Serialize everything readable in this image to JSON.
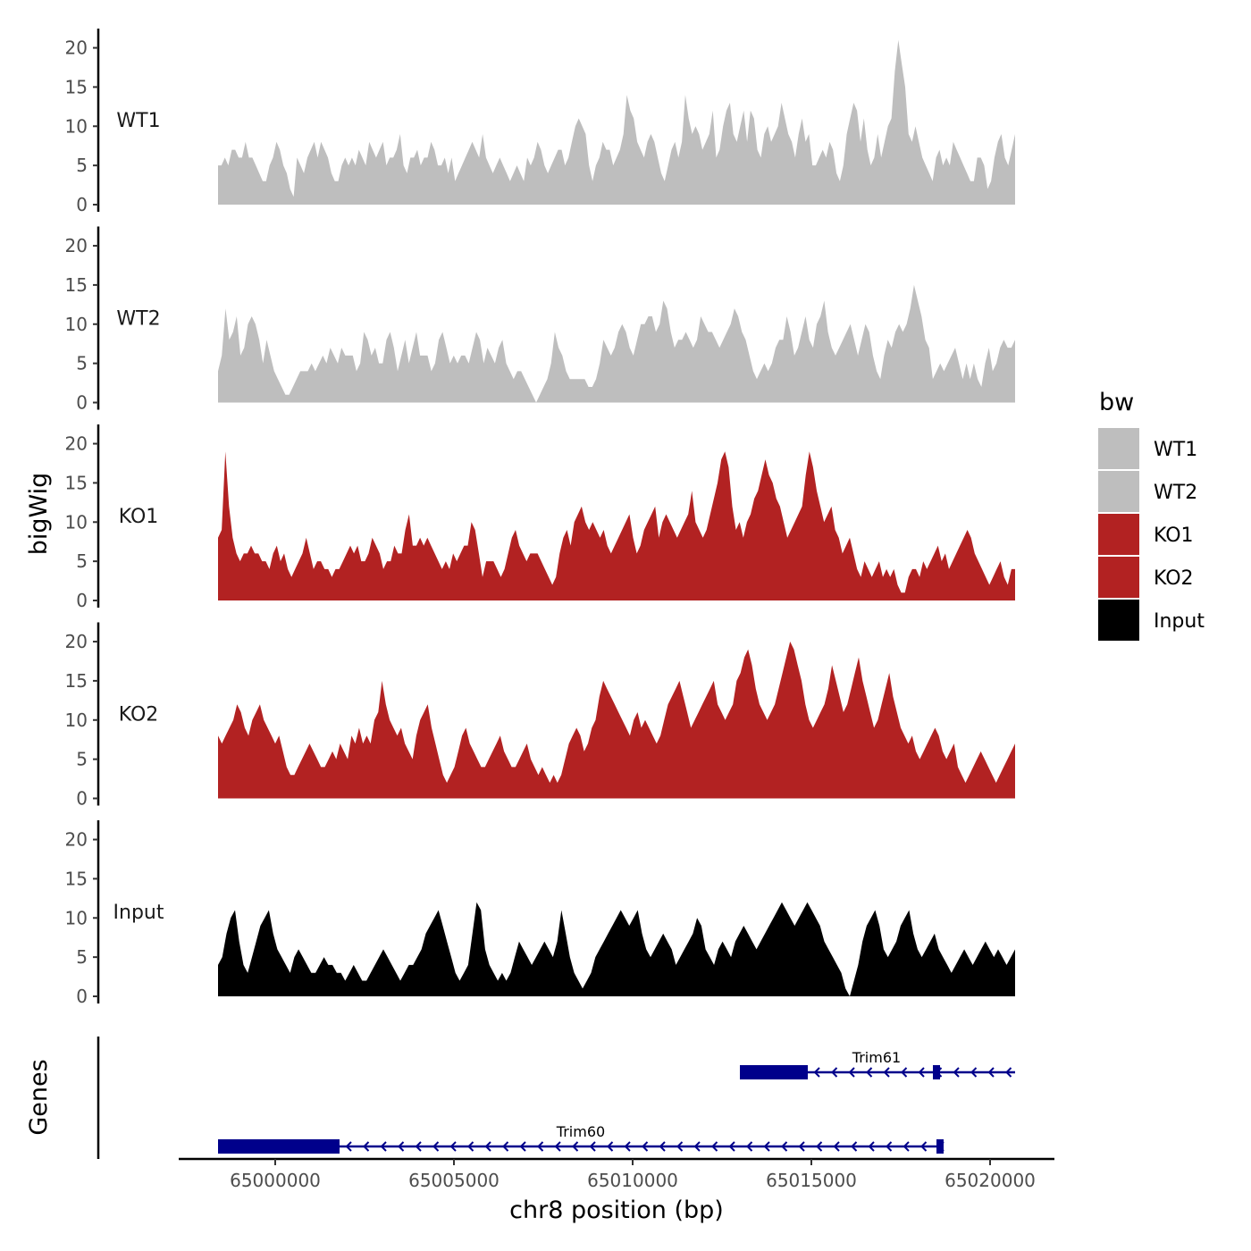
{
  "chart_data": {
    "type": "area",
    "chromosome": "chr8",
    "xlabel": "chr8 position (bp)",
    "ylabel": "bigWig",
    "genes_label": "Genes",
    "xlim": [
      64997300,
      65021800
    ],
    "ylim": [
      0,
      22
    ],
    "x_ticks": [
      65000000,
      65005000,
      65010000,
      65015000,
      65020000
    ],
    "x_tick_labels": [
      "65000000",
      "65005000",
      "65010000",
      "65015000",
      "65020000"
    ],
    "y_ticks": [
      0,
      5,
      10,
      15,
      20
    ],
    "y_tick_labels": [
      "0",
      "5",
      "10",
      "15",
      "20"
    ],
    "signal_range": [
      64998400,
      65020700
    ],
    "legend": {
      "title": "bw",
      "entries": [
        {
          "label": "WT1",
          "color": "#bebebe"
        },
        {
          "label": "WT2",
          "color": "#bebebe"
        },
        {
          "label": "KO1",
          "color": "#b22222"
        },
        {
          "label": "KO2",
          "color": "#b22222"
        },
        {
          "label": "Input",
          "color": "#000000"
        }
      ]
    },
    "series": [
      {
        "name": "WT1",
        "color": "#bebebe",
        "values": [
          5,
          5,
          6,
          5,
          7,
          7,
          6,
          6,
          8,
          6,
          6,
          5,
          4,
          3,
          3,
          5,
          6,
          8,
          7,
          5,
          4,
          2,
          1,
          6,
          5,
          4,
          6,
          7,
          8,
          6,
          8,
          7,
          6,
          4,
          3,
          3,
          5,
          6,
          5,
          6,
          5,
          7,
          6,
          5,
          8,
          7,
          6,
          7,
          8,
          5,
          6,
          6,
          7,
          9,
          5,
          4,
          6,
          6,
          7,
          5,
          6,
          6,
          8,
          7,
          5,
          5,
          6,
          4,
          6,
          3,
          4,
          5,
          6,
          7,
          8,
          7,
          6,
          9,
          6,
          5,
          4,
          5,
          6,
          5,
          4,
          3,
          4,
          5,
          4,
          3,
          6,
          5,
          6,
          8,
          7,
          5,
          4,
          5,
          6,
          7,
          7,
          5,
          6,
          8,
          10,
          11,
          10,
          9,
          5,
          3,
          5,
          6,
          8,
          7,
          7,
          5,
          6,
          7,
          9,
          14,
          12,
          11,
          8,
          7,
          6,
          8,
          9,
          8,
          6,
          4,
          3,
          5,
          7,
          8,
          6,
          8,
          14,
          11,
          9,
          10,
          9,
          7,
          8,
          9,
          12,
          6,
          7,
          10,
          12,
          13,
          9,
          8,
          10,
          12,
          8,
          12,
          11,
          7,
          6,
          9,
          10,
          8,
          9,
          10,
          13,
          11,
          9,
          8,
          6,
          9,
          11,
          8,
          9,
          5,
          5,
          6,
          7,
          6,
          8,
          7,
          4,
          3,
          5,
          9,
          11,
          13,
          12,
          8,
          11,
          7,
          5,
          6,
          9,
          6,
          8,
          10,
          11,
          17,
          21,
          18,
          15,
          9,
          8,
          10,
          8,
          6,
          5,
          4,
          3,
          6,
          7,
          5,
          6,
          5,
          8,
          7,
          6,
          5,
          4,
          3,
          3,
          6,
          6,
          5,
          2,
          3,
          6,
          8,
          9,
          6,
          5,
          7,
          9
        ]
      },
      {
        "name": "WT2",
        "color": "#bebebe",
        "values": [
          4,
          6,
          12,
          8,
          9,
          11,
          6,
          7,
          10,
          11,
          10,
          8,
          5,
          8,
          6,
          4,
          3,
          2,
          1,
          1,
          2,
          3,
          4,
          4,
          4,
          5,
          4,
          5,
          6,
          5,
          7,
          6,
          5,
          7,
          6,
          6,
          6,
          4,
          5,
          9,
          8,
          6,
          7,
          5,
          5,
          8,
          9,
          7,
          4,
          6,
          8,
          5,
          7,
          9,
          6,
          6,
          6,
          4,
          5,
          8,
          9,
          7,
          5,
          6,
          5,
          6,
          6,
          5,
          7,
          9,
          8,
          5,
          7,
          6,
          5,
          7,
          8,
          5,
          4,
          3,
          4,
          4,
          3,
          2,
          1,
          0,
          1,
          2,
          3,
          5,
          9,
          7,
          6,
          4,
          3,
          3,
          3,
          3,
          3,
          2,
          2,
          3,
          5,
          8,
          7,
          6,
          7,
          9,
          10,
          9,
          7,
          6,
          8,
          10,
          10,
          11,
          11,
          9,
          10,
          13,
          12,
          9,
          7,
          8,
          8,
          9,
          8,
          7,
          8,
          11,
          10,
          9,
          9,
          8,
          7,
          8,
          9,
          10,
          12,
          11,
          9,
          8,
          6,
          4,
          3,
          4,
          5,
          4,
          5,
          7,
          8,
          8,
          11,
          9,
          6,
          7,
          9,
          11,
          8,
          7,
          10,
          11,
          13,
          9,
          7,
          6,
          7,
          8,
          9,
          10,
          8,
          6,
          8,
          10,
          9,
          6,
          4,
          3,
          6,
          8,
          7,
          9,
          10,
          9,
          10,
          12,
          15,
          13,
          11,
          8,
          7,
          3,
          4,
          5,
          4,
          5,
          6,
          7,
          5,
          3,
          5,
          3,
          5,
          3,
          2,
          5,
          7,
          4,
          5,
          7,
          8,
          7,
          7,
          8
        ]
      },
      {
        "name": "KO1",
        "color": "#b22222",
        "values": [
          8,
          9,
          19,
          12,
          8,
          6,
          5,
          6,
          6,
          7,
          6,
          6,
          5,
          5,
          4,
          6,
          7,
          5,
          6,
          4,
          3,
          4,
          5,
          6,
          8,
          6,
          4,
          5,
          5,
          4,
          4,
          3,
          4,
          4,
          5,
          6,
          7,
          6,
          7,
          5,
          5,
          6,
          8,
          7,
          6,
          4,
          5,
          5,
          7,
          6,
          6,
          9,
          11,
          7,
          7,
          8,
          7,
          8,
          7,
          6,
          5,
          4,
          5,
          4,
          6,
          5,
          6,
          7,
          7,
          10,
          9,
          6,
          3,
          5,
          5,
          5,
          4,
          3,
          4,
          6,
          8,
          9,
          7,
          6,
          5,
          6,
          6,
          6,
          5,
          4,
          3,
          2,
          3,
          6,
          8,
          9,
          7,
          10,
          11,
          12,
          10,
          9,
          10,
          9,
          8,
          9,
          7,
          6,
          7,
          8,
          9,
          10,
          11,
          8,
          6,
          7,
          9,
          10,
          11,
          12,
          8,
          10,
          11,
          10,
          9,
          8,
          9,
          10,
          11,
          14,
          10,
          9,
          8,
          9,
          11,
          13,
          15,
          18,
          19,
          17,
          12,
          9,
          10,
          8,
          10,
          11,
          13,
          14,
          16,
          18,
          16,
          15,
          13,
          12,
          10,
          8,
          9,
          10,
          11,
          12,
          16,
          19,
          17,
          14,
          12,
          10,
          11,
          12,
          9,
          8,
          6,
          7,
          8,
          6,
          4,
          3,
          5,
          4,
          3,
          4,
          5,
          3,
          4,
          3,
          4,
          2,
          1,
          1,
          3,
          4,
          4,
          3,
          5,
          4,
          5,
          6,
          7,
          5,
          6,
          4,
          5,
          6,
          7,
          8,
          9,
          8,
          6,
          5,
          4,
          3,
          2,
          3,
          4,
          5,
          3,
          2,
          4,
          4
        ]
      },
      {
        "name": "KO2",
        "color": "#b22222",
        "values": [
          8,
          7,
          8,
          9,
          10,
          12,
          11,
          9,
          8,
          10,
          11,
          12,
          10,
          9,
          8,
          7,
          8,
          6,
          4,
          3,
          3,
          4,
          5,
          6,
          7,
          6,
          5,
          4,
          4,
          5,
          6,
          5,
          7,
          6,
          5,
          8,
          7,
          9,
          7,
          8,
          7,
          10,
          11,
          15,
          12,
          10,
          9,
          8,
          9,
          7,
          6,
          5,
          8,
          10,
          11,
          12,
          9,
          7,
          5,
          3,
          2,
          3,
          4,
          6,
          8,
          9,
          7,
          6,
          5,
          4,
          4,
          5,
          6,
          7,
          8,
          6,
          5,
          4,
          4,
          5,
          6,
          7,
          5,
          4,
          3,
          4,
          3,
          2,
          3,
          2,
          3,
          5,
          7,
          8,
          9,
          8,
          6,
          7,
          9,
          10,
          13,
          15,
          14,
          13,
          12,
          11,
          10,
          9,
          8,
          10,
          11,
          9,
          10,
          9,
          8,
          7,
          8,
          10,
          12,
          13,
          14,
          15,
          13,
          11,
          9,
          10,
          11,
          12,
          13,
          14,
          15,
          12,
          11,
          10,
          11,
          12,
          15,
          16,
          18,
          19,
          17,
          14,
          12,
          11,
          10,
          11,
          12,
          14,
          16,
          18,
          20,
          19,
          17,
          15,
          12,
          10,
          9,
          10,
          11,
          12,
          14,
          17,
          15,
          13,
          11,
          12,
          14,
          16,
          18,
          15,
          13,
          11,
          9,
          10,
          12,
          14,
          16,
          13,
          11,
          9,
          8,
          7,
          8,
          6,
          5,
          6,
          7,
          8,
          9,
          8,
          6,
          5,
          6,
          7,
          4,
          3,
          2,
          3,
          4,
          5,
          6,
          5,
          4,
          3,
          2,
          3,
          4,
          5,
          6,
          7
        ]
      },
      {
        "name": "Input",
        "color": "#000000",
        "values": [
          4,
          5,
          8,
          10,
          11,
          7,
          4,
          3,
          5,
          7,
          9,
          10,
          11,
          8,
          6,
          5,
          4,
          3,
          5,
          6,
          5,
          4,
          3,
          3,
          4,
          5,
          4,
          4,
          3,
          3,
          2,
          3,
          4,
          3,
          2,
          2,
          3,
          4,
          5,
          6,
          5,
          4,
          3,
          2,
          3,
          4,
          4,
          5,
          6,
          8,
          9,
          10,
          11,
          9,
          7,
          5,
          3,
          2,
          3,
          4,
          8,
          12,
          11,
          6,
          4,
          3,
          2,
          3,
          2,
          3,
          5,
          7,
          6,
          5,
          4,
          5,
          6,
          7,
          6,
          5,
          7,
          11,
          8,
          5,
          3,
          2,
          1,
          2,
          3,
          5,
          6,
          7,
          8,
          9,
          10,
          11,
          10,
          9,
          10,
          11,
          8,
          6,
          5,
          6,
          7,
          8,
          7,
          6,
          4,
          5,
          6,
          7,
          8,
          10,
          9,
          6,
          5,
          4,
          6,
          7,
          6,
          5,
          7,
          8,
          9,
          8,
          7,
          6,
          7,
          8,
          9,
          10,
          11,
          12,
          11,
          10,
          9,
          10,
          11,
          12,
          11,
          10,
          9,
          7,
          6,
          5,
          4,
          3,
          1,
          0,
          2,
          4,
          7,
          9,
          10,
          11,
          9,
          6,
          5,
          6,
          7,
          9,
          10,
          11,
          8,
          6,
          5,
          6,
          7,
          8,
          6,
          5,
          4,
          3,
          4,
          5,
          6,
          5,
          4,
          5,
          6,
          7,
          6,
          5,
          6,
          5,
          4,
          5,
          6
        ]
      }
    ],
    "genes": [
      {
        "name": "Trim61",
        "start": 65013000,
        "end": 65020700,
        "strand": "-",
        "thick_start": 65013000,
        "thick_end": 65014900,
        "thick2_start": 65018400,
        "thick2_end": 65018600,
        "row": 1
      },
      {
        "name": "Trim60",
        "start": 64998400,
        "end": 65018700,
        "strand": "-",
        "thick_start": 64998400,
        "thick_end": 65001800,
        "thick2_start": 65018500,
        "thick2_end": 65018700,
        "row": 2
      }
    ]
  }
}
